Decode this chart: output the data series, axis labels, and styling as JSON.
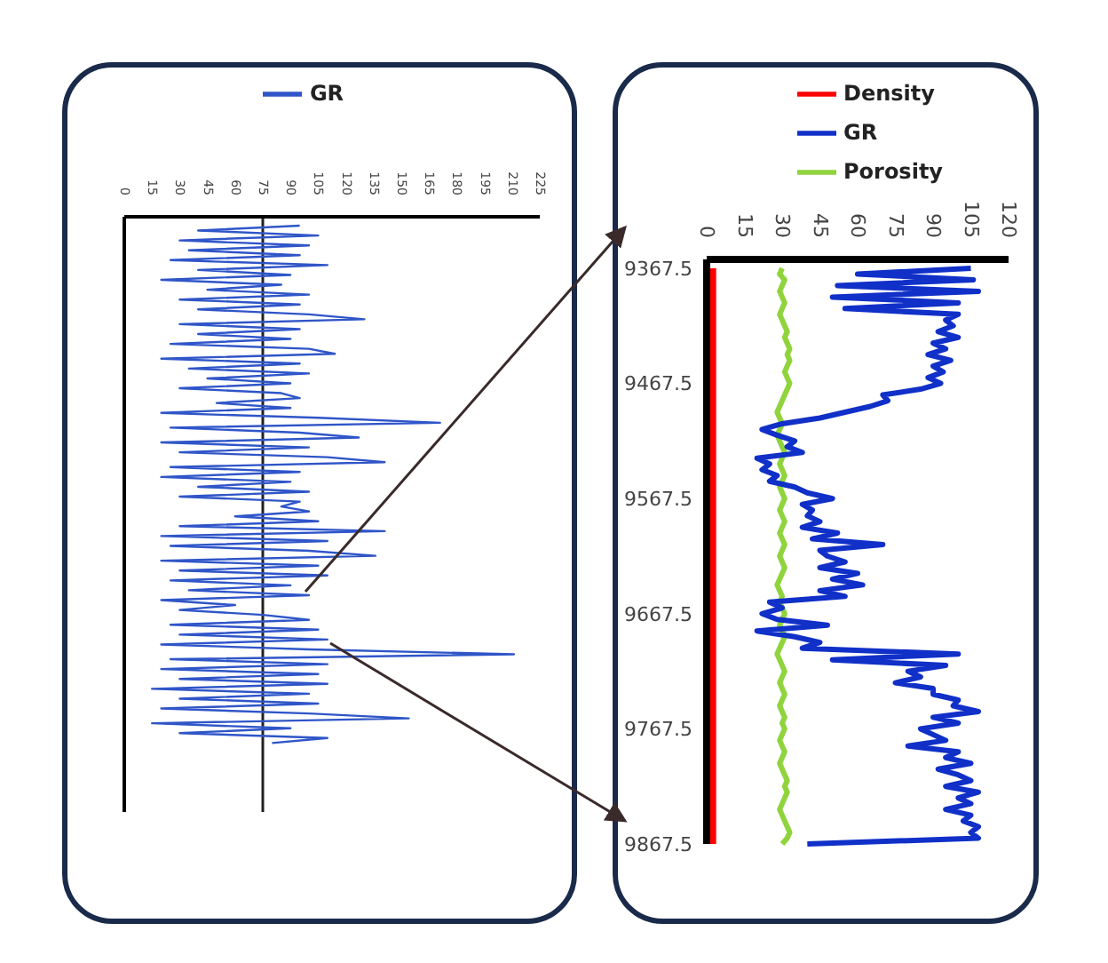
{
  "chart_data": [
    {
      "type": "line",
      "orientation": "horizontal",
      "legend": "top",
      "tick_labels": "x",
      "categories": [
        null,
        null,
        null,
        null,
        null,
        null,
        null,
        null,
        null,
        null,
        null,
        null,
        null,
        null,
        null,
        null,
        null,
        null,
        null,
        null,
        null,
        null,
        null,
        null,
        null,
        null,
        null,
        null,
        null,
        null,
        null,
        null,
        null,
        null,
        null,
        null,
        null,
        null,
        null,
        null,
        null,
        null,
        null,
        null,
        null,
        null,
        null,
        null,
        null,
        null,
        null,
        null,
        null,
        null,
        null,
        null,
        null,
        null,
        null,
        null,
        null,
        null,
        null,
        null,
        null,
        null,
        null,
        null,
        null,
        null,
        null,
        null,
        null,
        null,
        null,
        null,
        null,
        null,
        null,
        null,
        null,
        null,
        null,
        null,
        null,
        null,
        null,
        null,
        null,
        null,
        null,
        null,
        null,
        null,
        null,
        null,
        null,
        null,
        null,
        null,
        null,
        null,
        null,
        null,
        null,
        null,
        null,
        null,
        null,
        null,
        null,
        null,
        null,
        null,
        null,
        null,
        null,
        null,
        null,
        null
      ],
      "series": [
        {
          "name": "GR",
          "color": "#2f55c8",
          "values": [
            95,
            40,
            105,
            30,
            100,
            35,
            95,
            25,
            110,
            40,
            90,
            20,
            85,
            45,
            100,
            30,
            95,
            40,
            100,
            130,
            30,
            95,
            40,
            90,
            25,
            100,
            114,
            20,
            95,
            35,
            100,
            45,
            90,
            30,
            85,
            95,
            50,
            90,
            20,
            105,
            171,
            25,
            95,
            127,
            20,
            100,
            30,
            110,
            141,
            25,
            95,
            20,
            90,
            40,
            100,
            30,
            95,
            85,
            100,
            60,
            105,
            30,
            141,
            20,
            110,
            25,
            100,
            136,
            20,
            105,
            30,
            110,
            25,
            90,
            35,
            100,
            20,
            60,
            30,
            75,
            100,
            25,
            105,
            30,
            110,
            20,
            100,
            211,
            25,
            110,
            20,
            105,
            30,
            110,
            15,
            100,
            30,
            105,
            20,
            100,
            154,
            15,
            90,
            30,
            110,
            80,
            null,
            null,
            null,
            null,
            null,
            null,
            null,
            null,
            null,
            null,
            null,
            null,
            null,
            null
          ]
        }
      ],
      "xlim": [
        0,
        225
      ],
      "xticks": [
        0,
        15,
        30,
        45,
        60,
        75,
        90,
        105,
        120,
        135,
        150,
        165,
        180,
        195,
        210,
        225
      ],
      "ref_lines": [
        {
          "axis": "x",
          "value": 75,
          "color": "#222222"
        }
      ]
    },
    {
      "type": "line",
      "orientation": "horizontal",
      "legend": "top right",
      "categories": [
        "9367.5",
        null,
        null,
        null,
        null,
        null,
        null,
        null,
        null,
        null,
        null,
        null,
        null,
        null,
        null,
        null,
        null,
        null,
        null,
        null,
        "9467.5",
        null,
        null,
        null,
        null,
        null,
        null,
        null,
        null,
        null,
        null,
        null,
        null,
        null,
        null,
        null,
        null,
        null,
        null,
        null,
        "9567.5",
        null,
        null,
        null,
        null,
        null,
        null,
        null,
        null,
        null,
        null,
        null,
        null,
        null,
        null,
        null,
        null,
        null,
        null,
        null,
        "9667.5",
        null,
        null,
        null,
        null,
        null,
        null,
        null,
        null,
        null,
        null,
        null,
        null,
        null,
        null,
        null,
        null,
        null,
        null,
        null,
        "9767.5",
        null,
        null,
        null,
        null,
        null,
        null,
        null,
        null,
        null,
        null,
        null,
        null,
        null,
        null,
        null,
        null,
        null,
        null,
        null,
        "9867.5"
      ],
      "series": [
        {
          "name": "Density",
          "color": "#ff0000",
          "values": [
            2,
            2,
            2,
            2,
            2,
            2,
            2,
            2,
            2,
            2,
            2,
            2,
            2,
            2,
            2,
            2,
            2,
            2,
            2,
            2,
            2,
            2,
            2,
            2,
            2,
            2,
            2,
            2,
            2,
            2,
            2,
            2,
            2,
            2,
            2,
            2,
            2,
            2,
            2,
            2,
            2,
            2,
            2,
            2,
            2,
            2,
            2,
            2,
            2,
            2,
            2,
            2,
            2,
            2,
            2,
            2,
            2,
            2,
            2,
            2,
            2,
            2,
            2,
            2,
            2,
            2,
            2,
            2,
            2,
            2,
            2,
            2,
            2,
            2,
            2,
            2,
            2,
            2,
            2,
            2,
            2,
            2,
            2,
            2,
            2,
            2,
            2,
            2,
            2,
            2,
            2,
            2,
            2,
            2,
            2,
            2,
            2,
            2,
            2,
            2,
            2
          ]
        },
        {
          "name": "Porosity",
          "color": "#8fd43c",
          "values": [
            30,
            29,
            31,
            30,
            29,
            30,
            31,
            30,
            29,
            30,
            31,
            32,
            31,
            32,
            33,
            32,
            33,
            32,
            31,
            32,
            33,
            32,
            31,
            30,
            29,
            28,
            29,
            30,
            29,
            28,
            29,
            30,
            31,
            30,
            29,
            30,
            31,
            30,
            29,
            30,
            31,
            30,
            29,
            30,
            31,
            30,
            29,
            30,
            31,
            30,
            29,
            30,
            31,
            30,
            29,
            28,
            29,
            30,
            29,
            30,
            31,
            30,
            29,
            30,
            31,
            30,
            29,
            28,
            29,
            30,
            31,
            30,
            29,
            30,
            31,
            30,
            29,
            30,
            31,
            30,
            31,
            30,
            29,
            30,
            31,
            30,
            29,
            30,
            31,
            32,
            31,
            32,
            31,
            30,
            29,
            30,
            31,
            32,
            33,
            32,
            30
          ]
        },
        {
          "name": "GR",
          "color": "#1030c8",
          "values": [
            105,
            60,
            106,
            52,
            108,
            50,
            100,
            55,
            100,
            95,
            98,
            92,
            100,
            90,
            95,
            88,
            97,
            90,
            94,
            88,
            93,
            85,
            70,
            72,
            65,
            55,
            45,
            30,
            22,
            28,
            35,
            32,
            38,
            20,
            25,
            22,
            28,
            25,
            35,
            40,
            50,
            38,
            42,
            40,
            45,
            38,
            52,
            42,
            70,
            45,
            48,
            55,
            45,
            60,
            50,
            62,
            45,
            55,
            25,
            30,
            22,
            28,
            48,
            20,
            35,
            45,
            38,
            100,
            50,
            95,
            80,
            85,
            75,
            90,
            90,
            100,
            98,
            108,
            90,
            100,
            85,
            90,
            95,
            80,
            100,
            95,
            105,
            92,
            100,
            105,
            95,
            108,
            100,
            105,
            95,
            105,
            102,
            108,
            105,
            108,
            40
          ]
        }
      ],
      "xlim": [
        0,
        120
      ],
      "xticks": [
        0,
        15,
        30,
        45,
        60,
        75,
        90,
        105,
        120
      ]
    }
  ]
}
